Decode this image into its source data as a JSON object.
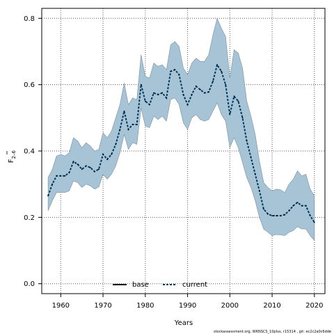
{
  "chart_data": {
    "type": "area",
    "xlabel": "Years",
    "ylabel": "F",
    "ylabel_sub": "2–6",
    "xlim": [
      1955.5,
      2022.5
    ],
    "ylim": [
      -0.03,
      0.83
    ],
    "x_ticks": [
      1960,
      1970,
      1980,
      1990,
      2000,
      2010,
      2020
    ],
    "y_ticks": [
      0.0,
      0.2,
      0.4,
      0.6,
      0.8
    ],
    "x_tick_labels": [
      "1960",
      "1970",
      "1980",
      "1990",
      "2000",
      "2010",
      "2020"
    ],
    "y_tick_labels": [
      "0.0",
      "0.2",
      "0.4",
      "0.6",
      "0.8"
    ],
    "grid": true,
    "legend_position": "bottom-center",
    "legend": [
      {
        "label": "base",
        "style": "solid",
        "color": "#000000"
      },
      {
        "label": "current",
        "style": "dashed",
        "color": "#00385c"
      }
    ],
    "band_color": "#a6c4d6",
    "band_edge_color": "#7a8f9c",
    "x": [
      1957,
      1958,
      1959,
      1960,
      1961,
      1962,
      1963,
      1964,
      1965,
      1966,
      1967,
      1968,
      1969,
      1970,
      1971,
      1972,
      1973,
      1974,
      1975,
      1976,
      1977,
      1978,
      1979,
      1980,
      1981,
      1982,
      1983,
      1984,
      1985,
      1986,
      1987,
      1988,
      1989,
      1990,
      1991,
      1992,
      1993,
      1994,
      1995,
      1996,
      1997,
      1998,
      1999,
      2000,
      2001,
      2002,
      2003,
      2004,
      2005,
      2006,
      2007,
      2008,
      2009,
      2010,
      2011,
      2012,
      2013,
      2014,
      2015,
      2016,
      2017,
      2018,
      2019,
      2020
    ],
    "series": [
      {
        "name": "current",
        "values": [
          0.265,
          0.3,
          0.325,
          0.325,
          0.325,
          0.335,
          0.368,
          0.36,
          0.345,
          0.355,
          0.35,
          0.338,
          0.345,
          0.39,
          0.375,
          0.39,
          0.42,
          0.465,
          0.52,
          0.465,
          0.48,
          0.48,
          0.6,
          0.55,
          0.54,
          0.575,
          0.57,
          0.575,
          0.56,
          0.64,
          0.645,
          0.63,
          0.57,
          0.54,
          0.57,
          0.595,
          0.585,
          0.575,
          0.578,
          0.61,
          0.66,
          0.64,
          0.6,
          0.51,
          0.565,
          0.55,
          0.5,
          0.43,
          0.38,
          0.33,
          0.28,
          0.225,
          0.21,
          0.205,
          0.205,
          0.205,
          0.208,
          0.22,
          0.235,
          0.245,
          0.235,
          0.235,
          0.205,
          0.185
        ]
      }
    ],
    "band_lower": [
      0.22,
      0.25,
      0.275,
      0.275,
      0.275,
      0.28,
      0.31,
      0.305,
      0.29,
      0.3,
      0.295,
      0.285,
      0.292,
      0.33,
      0.315,
      0.33,
      0.355,
      0.395,
      0.45,
      0.405,
      0.425,
      0.42,
      0.53,
      0.475,
      0.47,
      0.505,
      0.495,
      0.505,
      0.49,
      0.555,
      0.56,
      0.54,
      0.485,
      0.465,
      0.5,
      0.51,
      0.495,
      0.49,
      0.495,
      0.52,
      0.545,
      0.51,
      0.49,
      0.41,
      0.44,
      0.41,
      0.365,
      0.32,
      0.29,
      0.25,
      0.2,
      0.165,
      0.155,
      0.145,
      0.148,
      0.147,
      0.145,
      0.155,
      0.16,
      0.172,
      0.165,
      0.165,
      0.145,
      0.13
    ],
    "band_upper": [
      0.32,
      0.345,
      0.385,
      0.39,
      0.385,
      0.395,
      0.44,
      0.43,
      0.41,
      0.425,
      0.415,
      0.4,
      0.405,
      0.455,
      0.44,
      0.46,
      0.5,
      0.54,
      0.605,
      0.54,
      0.56,
      0.555,
      0.69,
      0.625,
      0.62,
      0.665,
      0.655,
      0.66,
      0.645,
      0.72,
      0.73,
      0.715,
      0.65,
      0.63,
      0.665,
      0.68,
      0.67,
      0.67,
      0.69,
      0.75,
      0.8,
      0.77,
      0.745,
      0.62,
      0.705,
      0.695,
      0.65,
      0.55,
      0.505,
      0.45,
      0.37,
      0.305,
      0.29,
      0.28,
      0.285,
      0.283,
      0.275,
      0.3,
      0.315,
      0.34,
      0.325,
      0.33,
      0.285,
      0.265
    ],
    "credit": "stockassessment.org, WKNSCS_10plus, r15314 , git: ec2c2a0c6dde"
  }
}
